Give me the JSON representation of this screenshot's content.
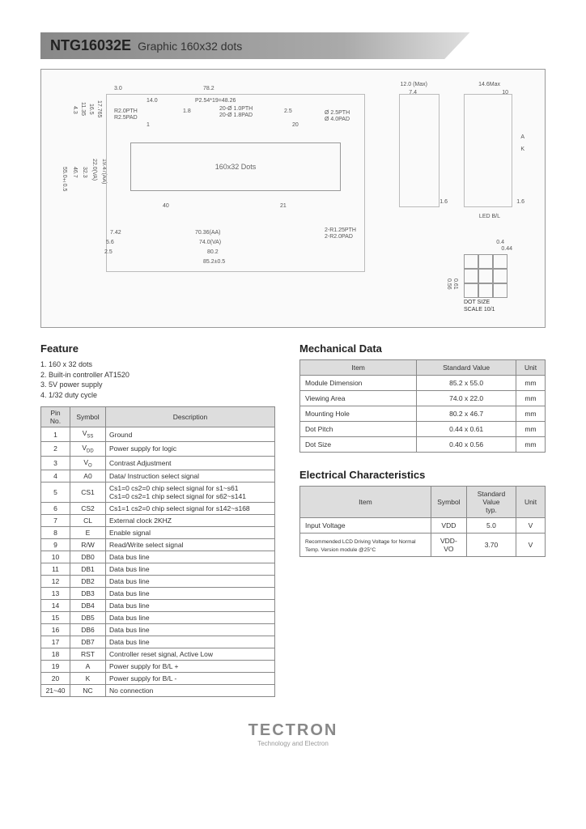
{
  "header": {
    "model": "NTG16032E",
    "subtitle": "Graphic 160x32 dots"
  },
  "diagram": {
    "display_label": "160x32 Dots",
    "dot_size_label": "DOT SIZE",
    "dot_scale": "SCALE 10/1",
    "led_label": "LED B/L",
    "dims": {
      "top_w": "12.0 (Max)",
      "top_w2": "14.6Max",
      "top_pad": "7.4",
      "top_h": "10",
      "left_3": "3.0",
      "width_78": "78.2",
      "inner_14": "14.0",
      "pitch": "P2.54*19=48.26",
      "pcb18": "1.8",
      "pth_note": "20-Ø 1.0PTH",
      "pad_note": "20-Ø 1.8PAD",
      "r25": "2.5",
      "r20pth": "R2.0PTH",
      "r25pad": "R2.5PAD",
      "hole": "Ø 2.5PTH",
      "hole_pad": "Ø 4.0PAD",
      "h_55": "55.0±0.5",
      "h_467": "46.7",
      "h_323": "32.3",
      "va": "22.0(VA)",
      "aa": "19.47(AA)",
      "l_43": "4.3",
      "l_1135": "11.35",
      "l_165": "16.5",
      "l_17765": "17.765",
      "aa_w": "70.36(AA)",
      "va_w": "74.0(VA)",
      "w_802": "80.2",
      "w_852": "85.2±0.5",
      "b_742": "7.42",
      "b_56": "5.6",
      "b_25": "2.5",
      "pin40": "40",
      "pin21": "21",
      "pin1": "1",
      "pin20": "20",
      "r125": "2-R1.25PTH",
      "r20": "2-R2.0PAD",
      "dot_044": "0.44",
      "dot_04": "0.4",
      "dot_061": "0.61",
      "dot_056": "0.56",
      "side_16": "1.6",
      "a_k_a": "A",
      "a_k_k": "K"
    }
  },
  "feature": {
    "title": "Feature",
    "items": [
      "1. 160 x 32 dots",
      "2. Built-in controller AT1520",
      "3. 5V power supply",
      "4. 1/32 duty cycle"
    ]
  },
  "pin_table": {
    "headers": [
      "Pin No.",
      "Symbol",
      "Description"
    ],
    "rows": [
      [
        "1",
        "V<sub>SS</sub>",
        "Ground"
      ],
      [
        "2",
        "V<sub>DD</sub>",
        "Power supply for logic"
      ],
      [
        "3",
        "V<sub>O</sub>",
        "Contrast Adjustment"
      ],
      [
        "4",
        "A0",
        "Data/ Instruction select signal"
      ],
      [
        "5",
        "CS1",
        "Cs1=0 cs2=0  chip select signal for s1~s61<br>Cs1=0 cs2=1  chip select signal for s62~s141"
      ],
      [
        "6",
        "CS2",
        "Cs1=1 cs2=0  chip select signal for s142~s168"
      ],
      [
        "7",
        "CL",
        "External clock 2KHZ"
      ],
      [
        "8",
        "E",
        "Enable signal"
      ],
      [
        "9",
        "R/W",
        "Read/Write select signal"
      ],
      [
        "10",
        "DB0",
        "Data bus line"
      ],
      [
        "11",
        "DB1",
        "Data bus line"
      ],
      [
        "12",
        "DB2",
        "Data bus line"
      ],
      [
        "13",
        "DB3",
        "Data bus line"
      ],
      [
        "14",
        "DB4",
        "Data bus line"
      ],
      [
        "15",
        "DB5",
        "Data bus line"
      ],
      [
        "16",
        "DB6",
        "Data bus line"
      ],
      [
        "17",
        "DB7",
        "Data bus line"
      ],
      [
        "18",
        "RST",
        "Controller reset signal, Active Low"
      ],
      [
        "19",
        "A",
        "Power supply for B/L +"
      ],
      [
        "20",
        "K",
        "Power supply for B/L -"
      ],
      [
        "21~40",
        "NC",
        "No connection"
      ]
    ]
  },
  "mech": {
    "title": "Mechanical Data",
    "headers": [
      "Item",
      "Standard Value",
      "Unit"
    ],
    "rows": [
      [
        "Module Dimension",
        "85.2 x 55.0",
        "mm"
      ],
      [
        "Viewing Area",
        "74.0 x 22.0",
        "mm"
      ],
      [
        "Mounting Hole",
        "80.2 x 46.7",
        "mm"
      ],
      [
        "Dot Pitch",
        "0.44 x 0.61",
        "mm"
      ],
      [
        "Dot Size",
        "0.40 x 0.56",
        "mm"
      ]
    ]
  },
  "elec": {
    "title": "Electrical Characteristics",
    "headers": [
      "Item",
      "Symbol",
      "Standard Value<br>typ.",
      "Unit"
    ],
    "rows": [
      [
        "Input Voltage",
        "VDD",
        "5.0",
        "V"
      ],
      [
        "<span class='small-note'>Recommended LCD Driving Voltage for Normal Temp. Version module @25°C</span>",
        "VDD-VO",
        "3.70",
        "V"
      ]
    ]
  },
  "logo": {
    "name": "TECTRON",
    "tag": "Technology and Electron"
  }
}
